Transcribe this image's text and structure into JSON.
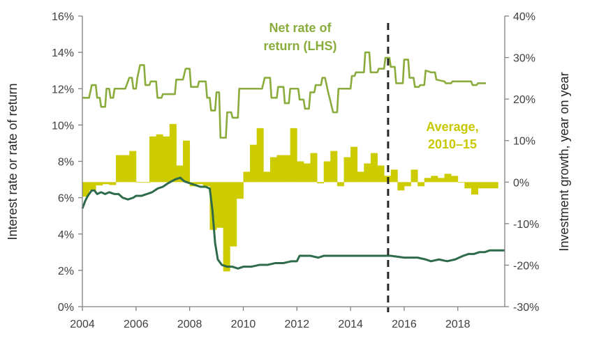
{
  "chart_data": {
    "type": "bar+line",
    "title": "",
    "xlabel": "",
    "ylabel_left": "Interest rate or rate of return",
    "ylabel_right": "Investment growth, year on year",
    "x_ticks": [
      "2004",
      "2006",
      "2008",
      "2010",
      "2012",
      "2014",
      "2016",
      "2018"
    ],
    "y_left_ticks": [
      "0%",
      "2%",
      "4%",
      "6%",
      "8%",
      "10%",
      "12%",
      "14%",
      "16%"
    ],
    "y_right_ticks": [
      "-30%",
      "-20%",
      "-10%",
      "0%",
      "10%",
      "20%",
      "30%",
      "40%"
    ],
    "xlim": [
      2004,
      2019.75
    ],
    "ylim_left": [
      0,
      16
    ],
    "ylim_right": [
      -30,
      40
    ],
    "vline_x": 2015.4,
    "annotations": {
      "net_rate": [
        "Net rate of",
        "return (LHS)"
      ],
      "average": [
        "Average,",
        "2010–15"
      ]
    },
    "colors": {
      "bars": "#cccc00",
      "net_rate_line": "#8aac3c",
      "interest_line": "#2e6b4a",
      "axis": "#808080",
      "net_label": "#8aac3c",
      "average_label": "#c8c800"
    },
    "series": [
      {
        "name": "Investment growth, year on year (RHS)",
        "kind": "bar",
        "axis": "right",
        "bar_width_years": 0.25,
        "points": [
          [
            2004.125,
            -3.5
          ],
          [
            2004.375,
            -2.0
          ],
          [
            2004.625,
            -0.8
          ],
          [
            2004.875,
            -0.5
          ],
          [
            2005.125,
            -0.7
          ],
          [
            2005.375,
            6.5
          ],
          [
            2005.625,
            6.5
          ],
          [
            2005.875,
            7.5
          ],
          [
            2006.125,
            0.0
          ],
          [
            2006.375,
            0.0
          ],
          [
            2006.625,
            11.0
          ],
          [
            2006.875,
            11.5
          ],
          [
            2007.125,
            11.0
          ],
          [
            2007.375,
            14.0
          ],
          [
            2007.625,
            4.0
          ],
          [
            2007.875,
            10.0
          ],
          [
            2008.125,
            -1.0
          ],
          [
            2008.375,
            -0.5
          ],
          [
            2008.625,
            -1.0
          ],
          [
            2008.875,
            -11.5
          ],
          [
            2009.125,
            -11.0
          ],
          [
            2009.375,
            -21.5
          ],
          [
            2009.625,
            -15.5
          ],
          [
            2009.875,
            -4.0
          ],
          [
            2010.125,
            2.5
          ],
          [
            2010.375,
            9.0
          ],
          [
            2010.625,
            13.0
          ],
          [
            2010.875,
            2.5
          ],
          [
            2011.125,
            6.0
          ],
          [
            2011.375,
            6.5
          ],
          [
            2011.625,
            6.5
          ],
          [
            2011.875,
            13.0
          ],
          [
            2012.125,
            5.0
          ],
          [
            2012.375,
            4.5
          ],
          [
            2012.625,
            7.0
          ],
          [
            2012.875,
            -0.3
          ],
          [
            2013.125,
            5.0
          ],
          [
            2013.375,
            7.5
          ],
          [
            2013.625,
            -1.0
          ],
          [
            2013.875,
            6.0
          ],
          [
            2014.125,
            8.5
          ],
          [
            2014.375,
            2.5
          ],
          [
            2014.625,
            4.5
          ],
          [
            2014.875,
            7.0
          ],
          [
            2015.125,
            4.0
          ],
          [
            2015.375,
            1.5
          ],
          [
            2015.625,
            3.0
          ],
          [
            2015.875,
            -2.0
          ],
          [
            2016.125,
            -1.0
          ],
          [
            2016.375,
            3.0
          ],
          [
            2016.625,
            -1.0
          ],
          [
            2016.875,
            1.0
          ],
          [
            2017.125,
            1.5
          ],
          [
            2017.375,
            1.0
          ],
          [
            2017.625,
            2.0
          ],
          [
            2017.875,
            1.5
          ],
          [
            2018.125,
            0.0
          ],
          [
            2018.375,
            -1.5
          ],
          [
            2018.625,
            -3.0
          ],
          [
            2018.875,
            -1.5
          ],
          [
            2019.125,
            -1.5
          ],
          [
            2019.375,
            -1.5
          ]
        ]
      },
      {
        "name": "Net rate of return (LHS)",
        "kind": "line",
        "axis": "left",
        "points": [
          [
            2004.0,
            11.5
          ],
          [
            2004.25,
            11.5
          ],
          [
            2004.35,
            12.2
          ],
          [
            2004.5,
            12.2
          ],
          [
            2004.55,
            11.5
          ],
          [
            2004.65,
            11.5
          ],
          [
            2004.7,
            11.0
          ],
          [
            2004.85,
            11.0
          ],
          [
            2004.9,
            12.0
          ],
          [
            2005.0,
            12.0
          ],
          [
            2005.05,
            11.5
          ],
          [
            2005.15,
            11.5
          ],
          [
            2005.2,
            12.0
          ],
          [
            2005.6,
            12.0
          ],
          [
            2005.75,
            12.6
          ],
          [
            2005.85,
            12.6
          ],
          [
            2005.9,
            12.0
          ],
          [
            2006.0,
            12.0
          ],
          [
            2006.05,
            12.6
          ],
          [
            2006.15,
            13.3
          ],
          [
            2006.3,
            13.3
          ],
          [
            2006.35,
            12.2
          ],
          [
            2006.5,
            12.2
          ],
          [
            2006.55,
            12.4
          ],
          [
            2006.75,
            12.4
          ],
          [
            2006.8,
            11.5
          ],
          [
            2006.95,
            11.5
          ],
          [
            2007.0,
            11.7
          ],
          [
            2007.45,
            11.7
          ],
          [
            2007.5,
            12.5
          ],
          [
            2007.75,
            12.5
          ],
          [
            2007.85,
            13.1
          ],
          [
            2008.0,
            13.1
          ],
          [
            2008.05,
            12.1
          ],
          [
            2008.3,
            12.1
          ],
          [
            2008.35,
            12.4
          ],
          [
            2008.6,
            12.4
          ],
          [
            2008.65,
            11.5
          ],
          [
            2008.75,
            11.5
          ],
          [
            2008.8,
            10.8
          ],
          [
            2008.95,
            10.8
          ],
          [
            2009.0,
            11.8
          ],
          [
            2009.1,
            11.8
          ],
          [
            2009.15,
            9.3
          ],
          [
            2009.35,
            9.3
          ],
          [
            2009.4,
            10.7
          ],
          [
            2009.55,
            10.7
          ],
          [
            2009.6,
            10.4
          ],
          [
            2009.8,
            10.4
          ],
          [
            2009.85,
            12.0
          ],
          [
            2010.5,
            12.0
          ],
          [
            2010.7,
            12.0
          ],
          [
            2010.8,
            12.6
          ],
          [
            2011.0,
            12.6
          ],
          [
            2011.05,
            11.5
          ],
          [
            2011.25,
            11.5
          ],
          [
            2011.3,
            12.1
          ],
          [
            2011.5,
            12.1
          ],
          [
            2011.55,
            11.2
          ],
          [
            2011.7,
            11.2
          ],
          [
            2011.75,
            12.0
          ],
          [
            2012.05,
            12.0
          ],
          [
            2012.1,
            11.4
          ],
          [
            2012.25,
            11.4
          ],
          [
            2012.3,
            10.9
          ],
          [
            2012.45,
            10.9
          ],
          [
            2012.5,
            11.8
          ],
          [
            2012.65,
            11.8
          ],
          [
            2012.7,
            12.2
          ],
          [
            2012.9,
            12.2
          ],
          [
            2012.95,
            12.6
          ],
          [
            2013.05,
            12.6
          ],
          [
            2013.15,
            11.9
          ],
          [
            2013.35,
            10.7
          ],
          [
            2013.5,
            10.7
          ],
          [
            2013.55,
            12.0
          ],
          [
            2013.85,
            12.0
          ],
          [
            2014.0,
            12.0
          ],
          [
            2014.05,
            12.7
          ],
          [
            2014.15,
            12.7
          ],
          [
            2014.2,
            12.9
          ],
          [
            2014.5,
            12.9
          ],
          [
            2014.55,
            14.0
          ],
          [
            2014.7,
            14.0
          ],
          [
            2014.75,
            12.9
          ],
          [
            2015.0,
            12.9
          ],
          [
            2015.05,
            13.1
          ],
          [
            2015.25,
            13.1
          ],
          [
            2015.3,
            13.7
          ],
          [
            2015.45,
            13.7
          ],
          [
            2015.5,
            13.2
          ],
          [
            2015.65,
            13.2
          ],
          [
            2015.7,
            12.3
          ],
          [
            2015.95,
            12.3
          ],
          [
            2016.0,
            13.6
          ],
          [
            2016.15,
            13.6
          ],
          [
            2016.2,
            12.6
          ],
          [
            2016.35,
            12.6
          ],
          [
            2016.4,
            12.1
          ],
          [
            2016.55,
            12.1
          ],
          [
            2016.6,
            12.2
          ],
          [
            2016.75,
            12.2
          ],
          [
            2016.8,
            13.0
          ],
          [
            2017.0,
            12.9
          ],
          [
            2017.15,
            12.9
          ],
          [
            2017.2,
            12.5
          ],
          [
            2017.5,
            12.4
          ],
          [
            2017.55,
            12.3
          ],
          [
            2017.75,
            12.3
          ],
          [
            2017.8,
            12.4
          ],
          [
            2018.3,
            12.4
          ],
          [
            2018.5,
            12.4
          ],
          [
            2018.55,
            12.2
          ],
          [
            2018.7,
            12.2
          ],
          [
            2018.75,
            12.3
          ],
          [
            2019.05,
            12.3
          ]
        ]
      },
      {
        "name": "Interest rate (LHS)",
        "kind": "line",
        "axis": "left",
        "points": [
          [
            2004.0,
            5.4
          ],
          [
            2004.1,
            5.8
          ],
          [
            2004.2,
            6.1
          ],
          [
            2004.35,
            6.4
          ],
          [
            2004.45,
            6.4
          ],
          [
            2004.55,
            6.2
          ],
          [
            2004.7,
            6.3
          ],
          [
            2004.85,
            6.2
          ],
          [
            2005.0,
            6.3
          ],
          [
            2005.2,
            6.2
          ],
          [
            2005.35,
            6.2
          ],
          [
            2005.5,
            6.0
          ],
          [
            2005.7,
            5.9
          ],
          [
            2005.9,
            6.0
          ],
          [
            2006.0,
            6.1
          ],
          [
            2006.2,
            6.1
          ],
          [
            2006.4,
            6.2
          ],
          [
            2006.6,
            6.3
          ],
          [
            2006.8,
            6.5
          ],
          [
            2007.0,
            6.6
          ],
          [
            2007.2,
            6.8
          ],
          [
            2007.45,
            7.0
          ],
          [
            2007.65,
            7.1
          ],
          [
            2007.8,
            6.9
          ],
          [
            2008.0,
            6.8
          ],
          [
            2008.2,
            6.7
          ],
          [
            2008.4,
            6.6
          ],
          [
            2008.6,
            6.6
          ],
          [
            2008.75,
            6.5
          ],
          [
            2008.85,
            5.3
          ],
          [
            2008.95,
            3.5
          ],
          [
            2009.05,
            2.6
          ],
          [
            2009.2,
            2.3
          ],
          [
            2009.4,
            2.2
          ],
          [
            2009.6,
            2.2
          ],
          [
            2009.8,
            2.1
          ],
          [
            2010.0,
            2.2
          ],
          [
            2010.3,
            2.2
          ],
          [
            2010.6,
            2.3
          ],
          [
            2010.9,
            2.3
          ],
          [
            2011.2,
            2.4
          ],
          [
            2011.5,
            2.4
          ],
          [
            2011.8,
            2.5
          ],
          [
            2012.0,
            2.5
          ],
          [
            2012.1,
            2.8
          ],
          [
            2012.5,
            2.8
          ],
          [
            2012.8,
            2.7
          ],
          [
            2013.0,
            2.8
          ],
          [
            2013.5,
            2.8
          ],
          [
            2014.0,
            2.8
          ],
          [
            2014.5,
            2.8
          ],
          [
            2015.0,
            2.8
          ],
          [
            2015.5,
            2.8
          ],
          [
            2016.0,
            2.7
          ],
          [
            2016.5,
            2.7
          ],
          [
            2016.8,
            2.6
          ],
          [
            2017.0,
            2.5
          ],
          [
            2017.3,
            2.6
          ],
          [
            2017.6,
            2.5
          ],
          [
            2017.9,
            2.6
          ],
          [
            2018.2,
            2.8
          ],
          [
            2018.4,
            2.9
          ],
          [
            2018.6,
            2.9
          ],
          [
            2018.8,
            3.0
          ],
          [
            2019.0,
            3.0
          ],
          [
            2019.2,
            3.1
          ],
          [
            2019.4,
            3.1
          ],
          [
            2019.75,
            3.1
          ]
        ]
      }
    ]
  }
}
